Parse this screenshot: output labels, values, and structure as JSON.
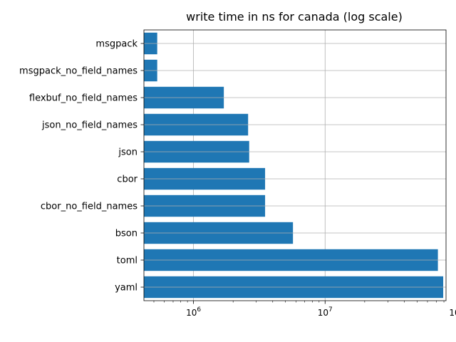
{
  "chart_data": {
    "type": "bar",
    "orientation": "horizontal",
    "title": "write time in ns for canada (log scale)",
    "xlabel": "",
    "ylabel": "",
    "xscale": "log",
    "xlim": [
      420000,
      83000000
    ],
    "xticks": [
      {
        "base": "10",
        "exp": "6",
        "value": 1000000
      },
      {
        "base": "10",
        "exp": "7",
        "value": 10000000
      },
      {
        "base": "10",
        "exp": "8",
        "value": 100000000
      }
    ],
    "grid": true,
    "bar_color": "#1f77b4",
    "categories": [
      "msgpack",
      "msgpack_no_field_names",
      "flexbuf_no_field_names",
      "json_no_field_names",
      "json",
      "cbor",
      "cbor_no_field_names",
      "bson",
      "toml",
      "yaml"
    ],
    "values": [
      530000,
      530000,
      1700000,
      2600000,
      2650000,
      3500000,
      3500000,
      5700000,
      72000000,
      79000000
    ]
  }
}
